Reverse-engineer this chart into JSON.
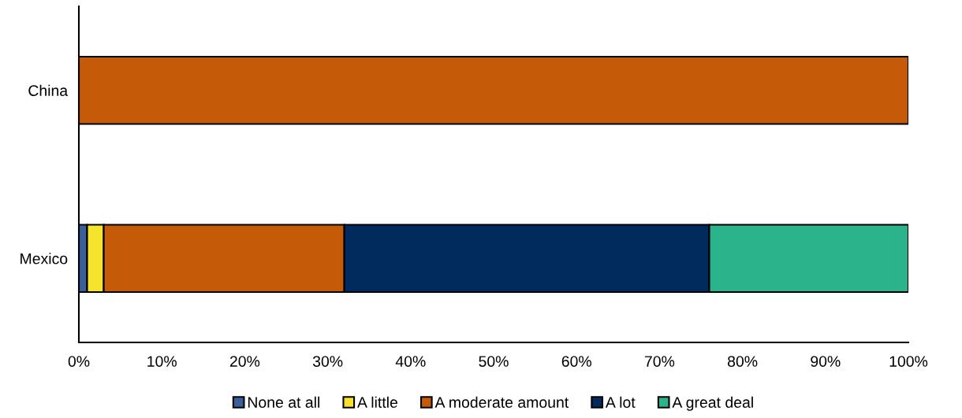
{
  "chart_data": {
    "type": "bar",
    "orientation": "horizontal",
    "stacked": true,
    "categories": [
      "China",
      "Mexico"
    ],
    "series": [
      {
        "name": "None at all",
        "color": "#3a5f9a",
        "values": [
          null,
          1
        ]
      },
      {
        "name": "A little",
        "color": "#f5e32e",
        "values": [
          null,
          2
        ]
      },
      {
        "name": "A moderate amount",
        "color": "#c55a08",
        "values": [
          100,
          29
        ]
      },
      {
        "name": "A lot",
        "color": "#002b5c",
        "values": [
          null,
          44
        ]
      },
      {
        "name": "A great deal",
        "color": "#2bb38b",
        "values": [
          null,
          24
        ]
      }
    ],
    "xlim": [
      0,
      100
    ],
    "xticks": [
      {
        "value": 0,
        "label": "0%"
      },
      {
        "value": 10,
        "label": "10%"
      },
      {
        "value": 20,
        "label": "20%"
      },
      {
        "value": 30,
        "label": "30%"
      },
      {
        "value": 40,
        "label": "40%"
      },
      {
        "value": 50,
        "label": "50%"
      },
      {
        "value": 60,
        "label": "60%"
      },
      {
        "value": 70,
        "label": "70%"
      },
      {
        "value": 80,
        "label": "80%"
      },
      {
        "value": 90,
        "label": "90%"
      },
      {
        "value": 100,
        "label": "100%"
      }
    ],
    "grid": false,
    "legend": "bottom"
  }
}
